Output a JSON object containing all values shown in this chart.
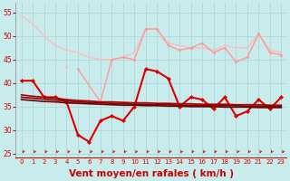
{
  "background_color": "#c8ecec",
  "grid_color": "#aadddd",
  "xlim": [
    -0.5,
    23.5
  ],
  "ylim": [
    24,
    57
  ],
  "yticks": [
    25,
    30,
    35,
    40,
    45,
    50,
    55
  ],
  "xticks": [
    0,
    1,
    2,
    3,
    4,
    5,
    6,
    7,
    8,
    9,
    10,
    11,
    12,
    13,
    14,
    15,
    16,
    17,
    18,
    19,
    20,
    21,
    22,
    23
  ],
  "xlabel": "Vent moyen/en rafales ( km/h )",
  "xlabel_color": "#cc0000",
  "tick_color": "#cc0000",
  "series": [
    {
      "label": "upper_light1",
      "color": "#ffbbbb",
      "linewidth": 1.0,
      "marker": null,
      "values": [
        54.5,
        52.5,
        50.0,
        48.0,
        47.0,
        46.5,
        45.5,
        45.0,
        45.0,
        45.5,
        46.5,
        51.5,
        51.5,
        48.5,
        48.0,
        47.5,
        47.5,
        47.0,
        48.0,
        47.5,
        47.5,
        50.5,
        47.0,
        46.5
      ]
    },
    {
      "label": "upper_light2",
      "color": "#ffbbbb",
      "linewidth": 1.0,
      "marker": "D",
      "markersize": 2.0,
      "values": [
        null,
        null,
        null,
        null,
        43.5,
        null,
        null,
        null,
        null,
        null,
        null,
        null,
        null,
        null,
        null,
        null,
        null,
        null,
        null,
        null,
        null,
        null,
        null,
        null
      ]
    },
    {
      "label": "mid_pink",
      "color": "#ff9999",
      "linewidth": 1.0,
      "marker": "D",
      "markersize": 2.0,
      "values": [
        null,
        null,
        null,
        null,
        null,
        43.0,
        null,
        36.0,
        45.0,
        45.5,
        45.0,
        51.5,
        51.5,
        48.0,
        47.0,
        47.5,
        48.5,
        46.5,
        47.5,
        44.5,
        45.5,
        50.5,
        46.5,
        46.0
      ]
    },
    {
      "label": "main_red",
      "color": "#dd0000",
      "linewidth": 1.5,
      "marker": "D",
      "markersize": 2.5,
      "values": [
        40.5,
        40.5,
        37.0,
        37.0,
        36.0,
        29.0,
        27.5,
        32.0,
        33.0,
        32.0,
        35.0,
        43.0,
        42.5,
        41.0,
        35.0,
        37.0,
        36.5,
        34.5,
        37.0,
        33.0,
        34.0,
        36.5,
        34.5,
        37.0
      ]
    },
    {
      "label": "flat_dark1",
      "color": "#aa0000",
      "linewidth": 1.2,
      "marker": null,
      "values": [
        37.5,
        37.2,
        37.0,
        36.8,
        36.5,
        36.3,
        36.2,
        36.0,
        36.0,
        35.9,
        35.8,
        35.8,
        35.7,
        35.7,
        35.6,
        35.6,
        35.5,
        35.5,
        35.5,
        35.4,
        35.4,
        35.4,
        35.3,
        35.3
      ]
    },
    {
      "label": "flat_dark2",
      "color": "#880000",
      "linewidth": 1.2,
      "marker": null,
      "values": [
        37.0,
        36.8,
        36.6,
        36.4,
        36.2,
        36.0,
        35.9,
        35.8,
        35.7,
        35.6,
        35.5,
        35.5,
        35.4,
        35.4,
        35.3,
        35.3,
        35.3,
        35.2,
        35.2,
        35.2,
        35.1,
        35.1,
        35.1,
        35.0
      ]
    },
    {
      "label": "flat_dark3",
      "color": "#660000",
      "linewidth": 1.2,
      "marker": null,
      "values": [
        36.5,
        36.3,
        36.1,
        36.0,
        35.8,
        35.7,
        35.6,
        35.5,
        35.4,
        35.3,
        35.3,
        35.2,
        35.2,
        35.1,
        35.1,
        35.0,
        35.0,
        35.0,
        34.9,
        34.9,
        34.9,
        34.8,
        34.8,
        34.8
      ]
    }
  ],
  "axhline_color": "#cc0000",
  "axhline_y": 24,
  "axhline_lw": 1.5
}
